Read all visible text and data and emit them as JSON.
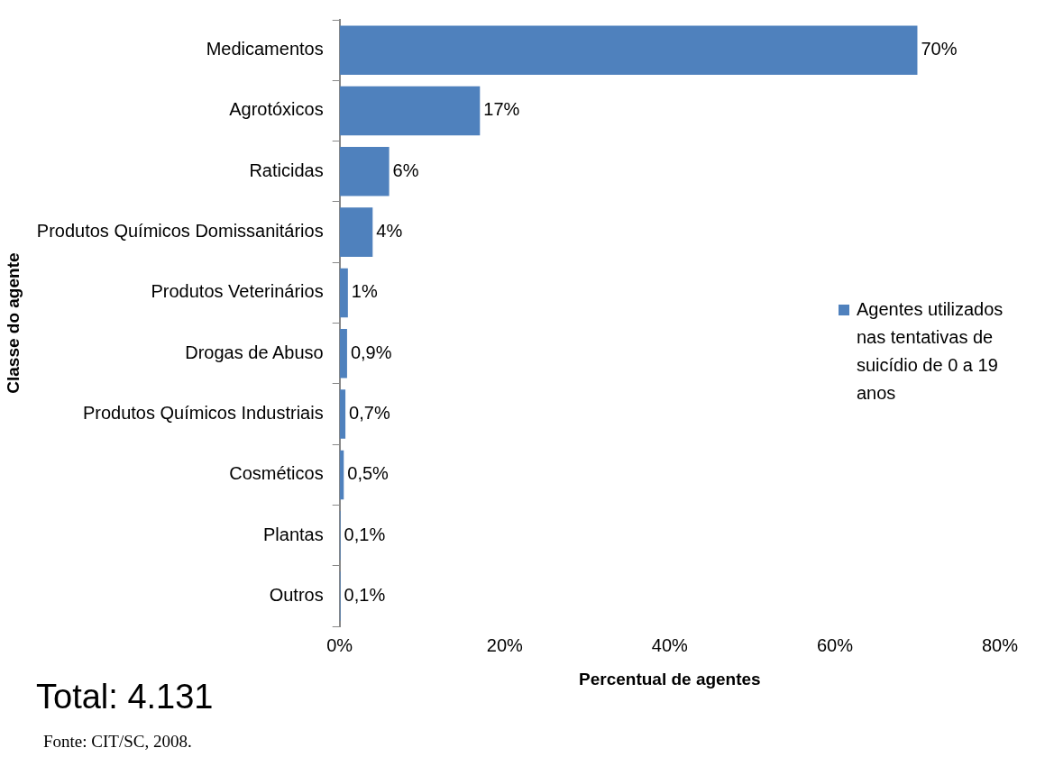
{
  "chart_data": {
    "type": "bar",
    "orientation": "horizontal",
    "xlabel": "Percentual de agentes",
    "ylabel": "Classe do agente",
    "categories": [
      "Medicamentos",
      "Agrotóxicos",
      "Raticidas",
      "Produtos Químicos Domissanitários",
      "Produtos Veterinários",
      "Drogas de Abuso",
      "Produtos Químicos Industriais",
      "Cosméticos",
      "Plantas",
      "Outros"
    ],
    "series": [
      {
        "name": "Agentes utilizados nas tentativas de suicídio de 0 a 19 anos",
        "color": "#4f81bd",
        "values": [
          70,
          17,
          6,
          4,
          1,
          0.9,
          0.7,
          0.5,
          0.1,
          0.1
        ],
        "value_labels": [
          "70%",
          "17%",
          "6%",
          "4%",
          "1%",
          "0,9%",
          "0,7%",
          "0,5%",
          "0,1%",
          "0,1%"
        ]
      }
    ],
    "xlim": [
      0,
      80
    ],
    "xticks": [
      {
        "value": 0,
        "label": "0%"
      },
      {
        "value": 20,
        "label": "20%"
      },
      {
        "value": 40,
        "label": "40%"
      },
      {
        "value": 60,
        "label": "60%"
      },
      {
        "value": 80,
        "label": "80%"
      }
    ],
    "grid": false,
    "legend": "right",
    "annotations": [
      "Total: 4.131",
      "Fonte: CIT/SC, 2008."
    ]
  }
}
